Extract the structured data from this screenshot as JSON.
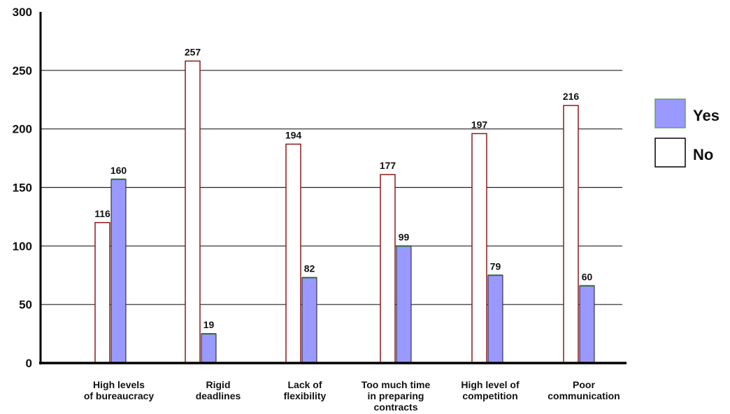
{
  "chart_data": {
    "type": "bar",
    "categories": [
      [
        "High levels",
        "of bureaucracy"
      ],
      [
        "Rigid",
        "deadlines"
      ],
      [
        "Lack of",
        "flexibility"
      ],
      [
        "Too much time",
        "in preparing",
        "contracts"
      ],
      [
        "High level of",
        "competition"
      ],
      [
        "Poor",
        "communication"
      ]
    ],
    "series": [
      {
        "name": "No",
        "values": [
          116,
          257,
          194,
          177,
          197,
          216
        ],
        "bar_heights": [
          120,
          258,
          187,
          161,
          196,
          220
        ],
        "color": "#ffffff",
        "stroke": "#8b1a1a"
      },
      {
        "name": "Yes",
        "values": [
          160,
          19,
          82,
          99,
          79,
          60
        ],
        "bar_heights": [
          157,
          25,
          73,
          100,
          75,
          66
        ],
        "color": "#9999ff",
        "stroke": "#2e6b2e"
      }
    ],
    "ylim": [
      0,
      300
    ],
    "yticks": [
      0,
      50,
      100,
      150,
      200,
      250,
      300
    ],
    "grid": true,
    "legend_position": "right",
    "legend": [
      {
        "label": "Yes",
        "color": "#9999ff"
      },
      {
        "label": "No",
        "color": "#ffffff"
      }
    ]
  }
}
